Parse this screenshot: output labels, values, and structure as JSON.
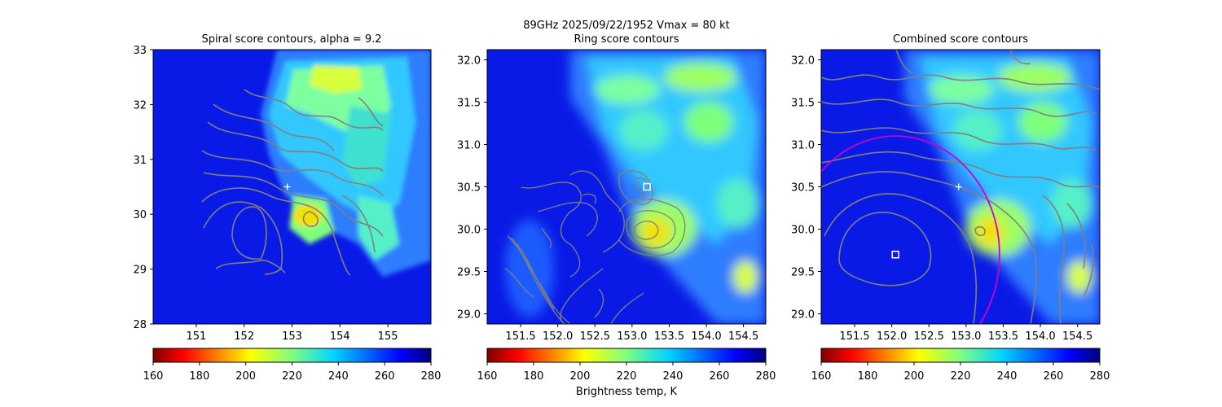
{
  "figure": {
    "suptitle_line1": "89GHz  2025/09/22/1952    Vmax = 80 kt",
    "colorbar_label": "Brightness temp, K"
  },
  "chart_data": [
    {
      "type": "heatmap",
      "title": "Spiral score contours, alpha =  9.2",
      "xlim": [
        150.1,
        155.9
      ],
      "ylim": [
        28,
        33
      ],
      "xticks": [
        "151",
        "152",
        "153",
        "154",
        "155"
      ],
      "xtick_values": [
        151,
        152,
        153,
        154,
        155
      ],
      "yticks": [
        "28",
        "29",
        "30",
        "31",
        "32",
        "33"
      ],
      "ytick_values": [
        28,
        29,
        30,
        31,
        32,
        33
      ],
      "markers": [
        {
          "symbol": "plus",
          "color": "#ffffff",
          "x": 152.9,
          "y": 30.5
        }
      ],
      "colorbar": {
        "cmap": "jet_r",
        "min": 160,
        "max": 280,
        "ticks": [
          "160",
          "180",
          "200",
          "220",
          "240",
          "260",
          "280"
        ]
      }
    },
    {
      "type": "heatmap",
      "title": "Ring score contours",
      "xlim": [
        151.05,
        154.8
      ],
      "ylim": [
        28.88,
        32.12
      ],
      "xticks": [
        "151.5",
        "152.0",
        "152.5",
        "153.0",
        "153.5",
        "154.0",
        "154.5"
      ],
      "xtick_values": [
        151.5,
        152.0,
        152.5,
        153.0,
        153.5,
        154.0,
        154.5
      ],
      "yticks": [
        "29.0",
        "29.5",
        "30.0",
        "30.5",
        "31.0",
        "31.5",
        "32.0"
      ],
      "ytick_values": [
        29.0,
        29.5,
        30.0,
        30.5,
        31.0,
        31.5,
        32.0
      ],
      "markers": [
        {
          "symbol": "square",
          "color": "#ffffff",
          "x": 153.2,
          "y": 30.5
        }
      ],
      "colorbar": {
        "cmap": "jet_r",
        "min": 160,
        "max": 280,
        "ticks": [
          "160",
          "180",
          "200",
          "220",
          "240",
          "260",
          "280"
        ]
      }
    },
    {
      "type": "heatmap",
      "title": "Combined score contours",
      "xlim": [
        151.05,
        154.8
      ],
      "ylim": [
        28.88,
        32.12
      ],
      "xticks": [
        "151.5",
        "152.0",
        "152.5",
        "153.0",
        "153.5",
        "154.0",
        "154.5"
      ],
      "xtick_values": [
        151.5,
        152.0,
        152.5,
        153.0,
        153.5,
        154.0,
        154.5
      ],
      "yticks": [
        "29.0",
        "29.5",
        "30.0",
        "30.5",
        "31.0",
        "31.5",
        "32.0"
      ],
      "ytick_values": [
        29.0,
        29.5,
        30.0,
        30.5,
        31.0,
        31.5,
        32.0
      ],
      "markers": [
        {
          "symbol": "plus",
          "color": "#ffffff",
          "x": 152.9,
          "y": 30.5
        },
        {
          "symbol": "square",
          "color": "#ffffff",
          "x": 152.05,
          "y": 29.7
        }
      ],
      "circle": {
        "color": "#cc00cc",
        "center_x": 152.05,
        "center_y": 29.7,
        "radius_deg": 1.4
      },
      "colorbar": {
        "cmap": "jet_r",
        "min": 160,
        "max": 280,
        "ticks": [
          "160",
          "180",
          "200",
          "220",
          "240",
          "260",
          "280"
        ]
      }
    }
  ],
  "colors": {
    "contour": "#808080",
    "axes": "#000000",
    "marker": "#ffffff",
    "circle": "#cc00cc"
  }
}
